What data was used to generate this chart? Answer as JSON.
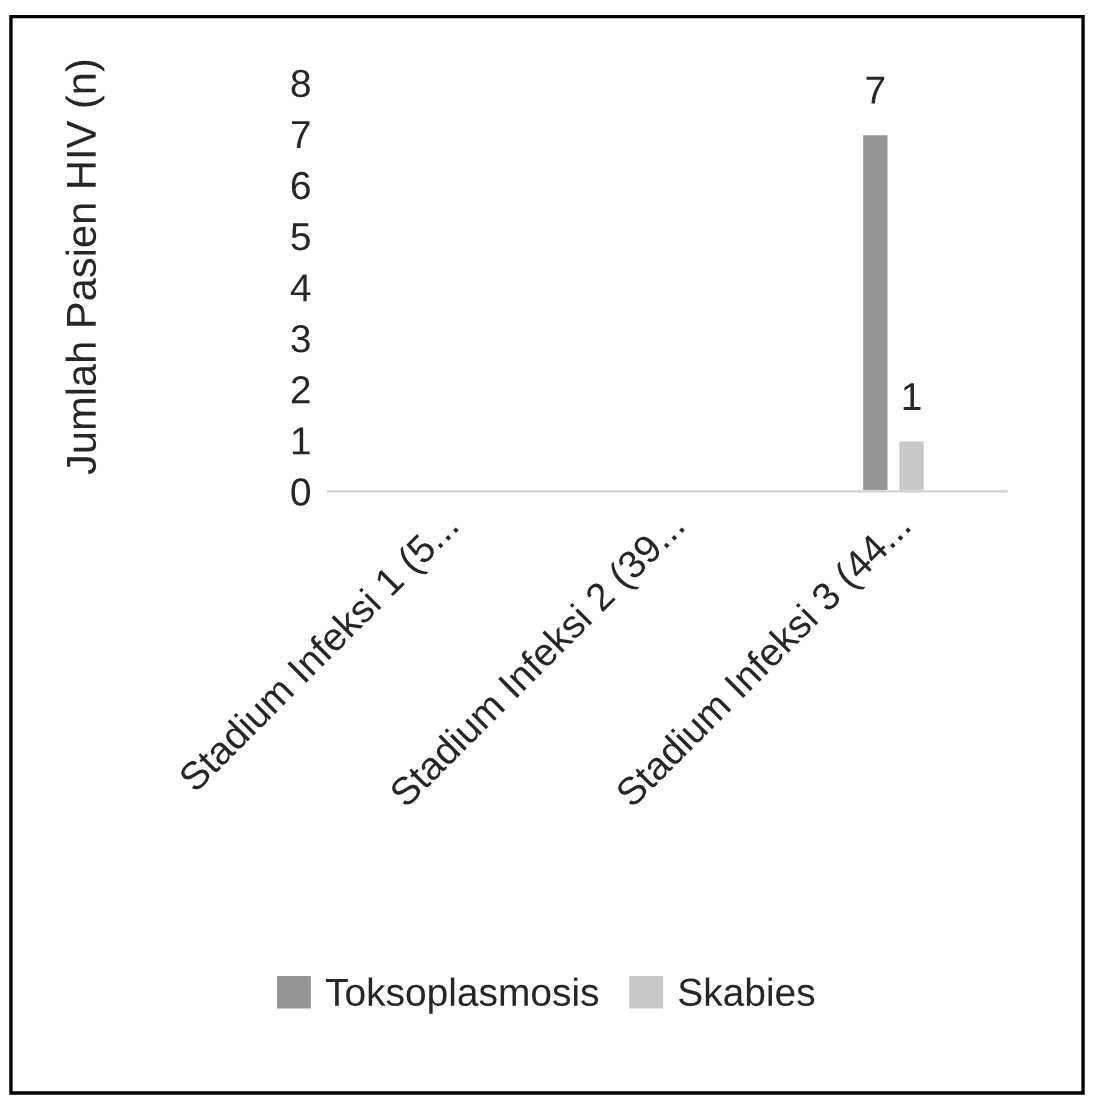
{
  "chart_data": {
    "type": "bar",
    "ylabel": "Jumlah Pasien HIV (n)",
    "categories": [
      "Stadium Infeksi 1 (5...",
      "Stadium Infeksi 2 (39...",
      "Stadium Infeksi 3 (44..."
    ],
    "series": [
      {
        "name": "Toksoplasmosis",
        "color": "#969696",
        "values": [
          null,
          null,
          7
        ],
        "value_labels": [
          null,
          null,
          "7"
        ]
      },
      {
        "name": "Skabies",
        "color": "#c8c8c8",
        "values": [
          null,
          null,
          1
        ],
        "value_labels": [
          null,
          null,
          "1"
        ]
      }
    ],
    "ylim": [
      0,
      8
    ],
    "yticks": [
      0,
      1,
      2,
      3,
      4,
      5,
      6,
      7,
      8
    ],
    "grid": false,
    "legend": "bottom"
  }
}
